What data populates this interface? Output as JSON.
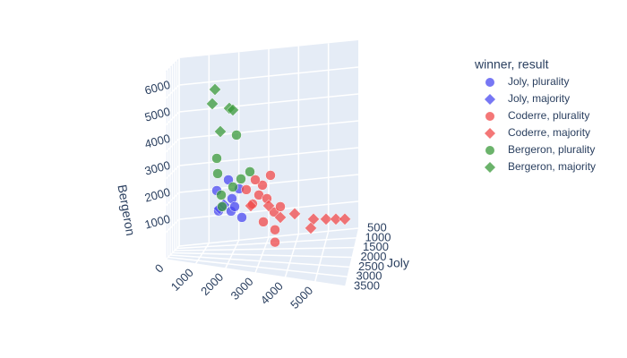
{
  "chart_data": {
    "type": "scatter3d",
    "legend_title": "winner, result",
    "yaxis_title": "Joly",
    "zaxis_title": "Bergeron",
    "xlim": [
      0,
      6000
    ],
    "ylim": [
      500,
      3500
    ],
    "zlim": [
      0,
      7000
    ],
    "xticks": [
      0,
      1000,
      2000,
      3000,
      4000,
      5000
    ],
    "yticks": [
      500,
      1000,
      1500,
      2000,
      2500,
      3000,
      3500
    ],
    "zticks": [
      1000,
      2000,
      3000,
      4000,
      5000,
      6000
    ],
    "series": [
      {
        "name": "Joly, plurality",
        "color": "#4a4af0",
        "symbol": "circle",
        "x": [
          1800,
          2160,
          1410,
          1920,
          2250,
          1890,
          2010,
          1470
        ],
        "y": [
          1500,
          1500,
          1500,
          1500,
          1500,
          1500,
          1500,
          1500
        ],
        "z": [
          2602,
          2262,
          2209,
          1900,
          1194,
          1434,
          1600,
          1450
        ]
      },
      {
        "name": "Joly, majority",
        "color": "#4a4af0",
        "symbol": "diamond",
        "x": [
          1500,
          1650
        ],
        "y": [
          1500,
          1500
        ],
        "z": [
          1541,
          1671
        ]
      },
      {
        "name": "Coderre, plurality",
        "color": "#f04a4a",
        "symbol": "circle",
        "x": [
          3210,
          2940,
          2700,
          2820,
          3090,
          2400,
          3330,
          3540,
          2970,
          3360,
          3360,
          2610
        ],
        "y": [
          1500,
          1500,
          1500,
          1500,
          1500,
          1500,
          1500,
          1500,
          1500,
          1500,
          1500,
          1500
        ],
        "z": [
          2744,
          2382,
          2586,
          2018,
          1880,
          2225,
          1376,
          1571,
          1015,
          713,
          250,
          1688
        ]
      },
      {
        "name": "Coderre, majority",
        "color": "#f04a4a",
        "symbol": "diamond",
        "x": [
          2550,
          3150,
          3540,
          4020,
          4650,
          5070,
          5400,
          5700,
          4560
        ],
        "y": [
          1500,
          1500,
          1500,
          1500,
          1500,
          1500,
          1500,
          1500,
          1500
        ],
        "z": [
          1622,
          1612,
          1172,
          1297,
          1086,
          1079,
          1073,
          1068,
          754
        ]
      },
      {
        "name": "Bergeron, plurality",
        "color": "#3a9a3a",
        "symbol": "circle",
        "x": [
          2070,
          1410,
          1440,
          2520,
          2220,
          1950,
          1560,
          1590
        ],
        "y": [
          1500,
          1500,
          1500,
          1500,
          1500,
          1500,
          1500,
          1500
        ],
        "z": [
          4264,
          3409,
          2842,
          2890,
          2628,
          2333,
          2040,
          1606
        ]
      },
      {
        "name": "Bergeron, majority",
        "color": "#3a9a3a",
        "symbol": "diamond",
        "x": [
          1350,
          1260,
          1830,
          1950,
          1530
        ],
        "y": [
          1500,
          1500,
          1500,
          1500,
          1500
        ],
        "z": [
          5977,
          5445,
          5268,
          5200,
          4407
        ]
      }
    ]
  }
}
